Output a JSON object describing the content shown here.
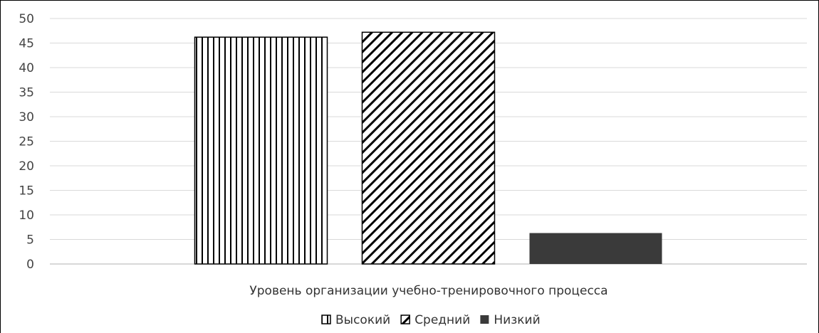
{
  "chart_data": {
    "type": "bar",
    "xlabel": "Уровень организации учебно-тренировочного процесса",
    "ylim": [
      0,
      50
    ],
    "ytick_step": 5,
    "grid": true,
    "legend_position": "bottom",
    "series": [
      {
        "name": "Высокий",
        "value": 46.2,
        "pattern": "vertical-stripes"
      },
      {
        "name": "Средний",
        "value": 47.2,
        "pattern": "diagonal-stripes"
      },
      {
        "name": "Низкий",
        "value": 6.3,
        "pattern": "solid",
        "color": "#3a3a3a"
      }
    ]
  }
}
